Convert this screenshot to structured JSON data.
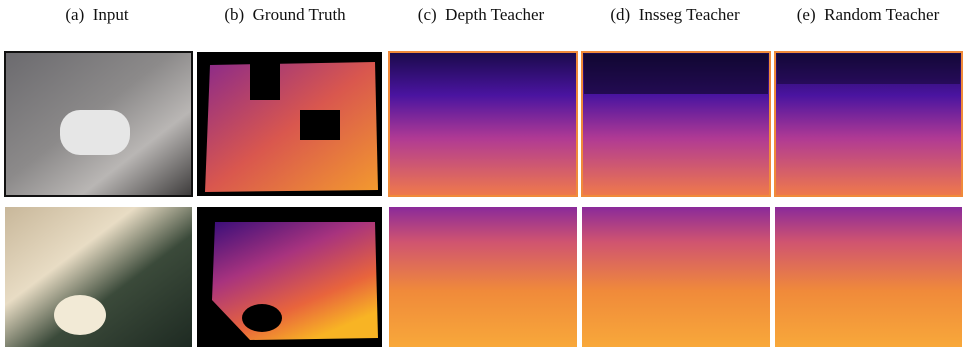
{
  "headers": [
    "(a)  Input",
    "(b)  Ground Truth",
    "(c)  Depth Teacher",
    "(d)  Insseg Teacher",
    "(e)  Random Teacher"
  ]
}
